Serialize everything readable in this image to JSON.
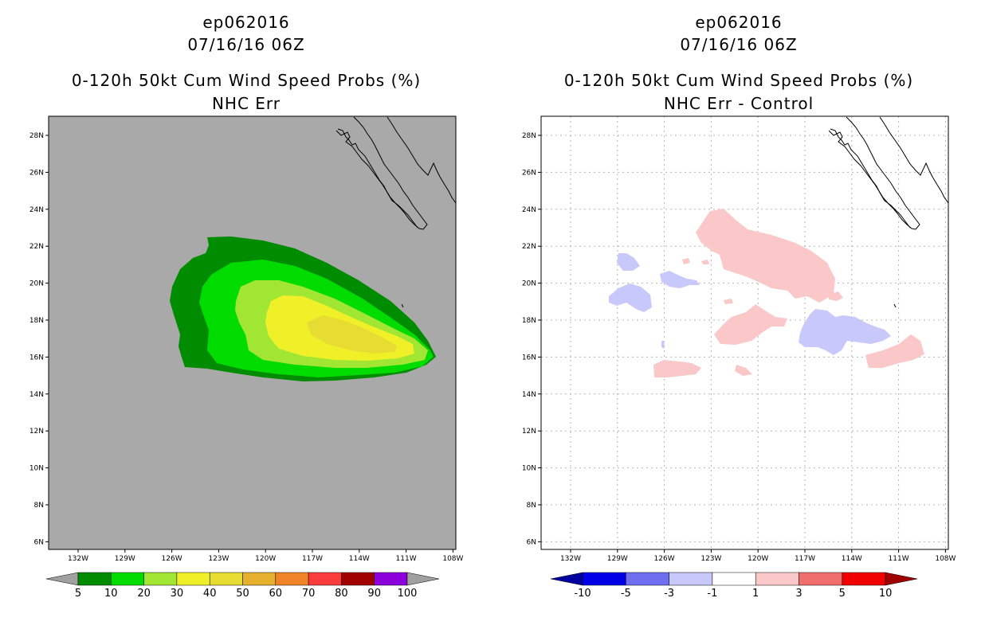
{
  "left": {
    "storm_id": "ep062016",
    "datetime": "07/16/16 06Z",
    "product": "0-120h 50kt Cum Wind Speed Probs (%)",
    "subtitle": "NHC Err",
    "colorbar": {
      "colors": [
        "#008c00",
        "#00dc00",
        "#a0e632",
        "#f0f028",
        "#e6dc32",
        "#e6af2d",
        "#f08228",
        "#fa3c3c",
        "#a00000",
        "#8c00dc"
      ],
      "end_left": "#a0a0a0",
      "end_right": "#a0a0a0",
      "labels": [
        "5",
        "10",
        "20",
        "30",
        "40",
        "50",
        "60",
        "70",
        "80",
        "90",
        "100"
      ]
    }
  },
  "right": {
    "storm_id": "ep062016",
    "datetime": "07/16/16 06Z",
    "product": "0-120h 50kt Cum Wind Speed Probs (%)",
    "subtitle": "NHC Err - Control",
    "colorbar": {
      "colors": [
        "#0000e6",
        "#6e6ef0",
        "#c8c8fa",
        "#ffffff",
        "#fac8c8",
        "#f06e6e",
        "#f00000"
      ],
      "end_left": "#0000a0",
      "end_right": "#a00000",
      "labels": [
        "-10",
        "-5",
        "-3",
        "-1",
        "1",
        "3",
        "5",
        "10"
      ]
    }
  },
  "map": {
    "lon_labels": [
      "132W",
      "129W",
      "126W",
      "123W",
      "120W",
      "117W",
      "114W",
      "111W",
      "108W"
    ],
    "lat_labels": [
      "28N",
      "26N",
      "24N",
      "22N",
      "20N",
      "18N",
      "16N",
      "14N",
      "12N",
      "10N",
      "8N",
      "6N"
    ],
    "background": "#a9a9a9"
  },
  "colors": {
    "green_dark": "#008c00",
    "green": "#00dc00",
    "yellow_green": "#a0e632",
    "yellow": "#f0f028",
    "olive_yellow": "#e6dc32",
    "pink": "#fac8c8",
    "lavender": "#c8c8fa"
  }
}
